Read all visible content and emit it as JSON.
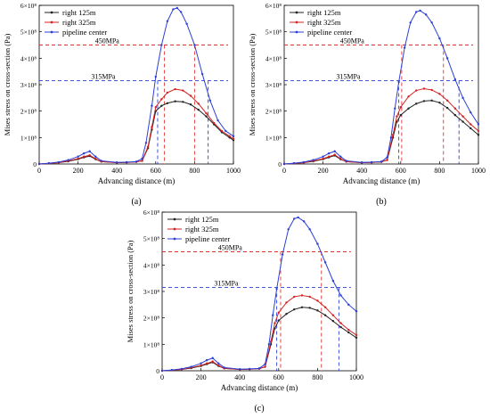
{
  "chart_data": [
    {
      "type": "line",
      "panel_label": "(a)",
      "xlabel": "Advancing distance (m)",
      "ylabel": "Mises stress on cross-section  (Pa)",
      "xlim": [
        0,
        1000
      ],
      "ylim": [
        0,
        600000000
      ],
      "xticks": [
        0,
        200,
        400,
        600,
        800,
        1000
      ],
      "yticks": [
        {
          "value": 0,
          "label": "0"
        },
        {
          "value": 100000000,
          "label": "1×10⁸"
        },
        {
          "value": 200000000,
          "label": "2×10⁸"
        },
        {
          "value": 300000000,
          "label": "3×10⁸"
        },
        {
          "value": 400000000,
          "label": "4×10⁸"
        },
        {
          "value": 500000000,
          "label": "5×10⁸"
        },
        {
          "value": 600000000,
          "label": "6×10⁸"
        }
      ],
      "legend_position": "top-left",
      "thresholds": [
        {
          "label": "450MPa",
          "value": 450000000,
          "color": "#e03131"
        },
        {
          "label": "315MPa",
          "value": 315000000,
          "color": "#2b3fd6"
        }
      ],
      "crossings": [
        {
          "x": 610,
          "color": "#2b3fd6"
        },
        {
          "x": 645,
          "color": "#e03131"
        },
        {
          "x": 800,
          "color": "#e03131"
        },
        {
          "x": 870,
          "color": "#2b3fd6"
        }
      ],
      "series": [
        {
          "name": "right 125m",
          "color": "#222222",
          "x": [
            0,
            50,
            100,
            150,
            200,
            230,
            260,
            290,
            320,
            400,
            450,
            500,
            530,
            560,
            580,
            600,
            630,
            660,
            700,
            740,
            780,
            820,
            860,
            900,
            940,
            980,
            1000
          ],
          "y": [
            0,
            2000000,
            5000000,
            10000000,
            18000000,
            25000000,
            30000000,
            18000000,
            9000000,
            5000000,
            6000000,
            8000000,
            12000000,
            60000000,
            130000000,
            200000000,
            220000000,
            230000000,
            237000000,
            235000000,
            225000000,
            205000000,
            180000000,
            150000000,
            120000000,
            100000000,
            90000000
          ]
        },
        {
          "name": "right 325m",
          "color": "#d42020",
          "x": [
            0,
            50,
            100,
            150,
            200,
            230,
            260,
            290,
            320,
            400,
            450,
            500,
            530,
            560,
            580,
            600,
            630,
            660,
            700,
            740,
            780,
            820,
            860,
            900,
            940,
            980,
            1000
          ],
          "y": [
            0,
            2000000,
            5000000,
            12000000,
            20000000,
            28000000,
            33000000,
            20000000,
            9000000,
            5000000,
            6000000,
            8000000,
            12000000,
            65000000,
            140000000,
            215000000,
            245000000,
            270000000,
            283000000,
            278000000,
            258000000,
            228000000,
            192000000,
            155000000,
            125000000,
            105000000,
            95000000
          ]
        },
        {
          "name": "pipeline center",
          "color": "#2b3fd6",
          "x": [
            0,
            50,
            100,
            150,
            200,
            230,
            260,
            290,
            320,
            400,
            450,
            500,
            530,
            550,
            580,
            600,
            630,
            660,
            690,
            710,
            730,
            760,
            800,
            840,
            880,
            920,
            960,
            1000
          ],
          "y": [
            0,
            3000000,
            7000000,
            15000000,
            28000000,
            40000000,
            48000000,
            28000000,
            12000000,
            6000000,
            7000000,
            9000000,
            20000000,
            80000000,
            220000000,
            330000000,
            450000000,
            540000000,
            585000000,
            590000000,
            575000000,
            530000000,
            450000000,
            340000000,
            240000000,
            165000000,
            125000000,
            105000000
          ]
        }
      ]
    },
    {
      "type": "line",
      "panel_label": "(b)",
      "xlabel": "Advancing distance (m)",
      "ylabel": "Mises stress on cross-section  (Pa)",
      "xlim": [
        0,
        1000
      ],
      "ylim": [
        0,
        600000000
      ],
      "xticks": [
        0,
        200,
        400,
        600,
        800,
        1000
      ],
      "yticks": [
        {
          "value": 0,
          "label": "0"
        },
        {
          "value": 100000000,
          "label": "1×10⁸"
        },
        {
          "value": 200000000,
          "label": "2×10⁸"
        },
        {
          "value": 300000000,
          "label": "3×10⁸"
        },
        {
          "value": 400000000,
          "label": "4×10⁸"
        },
        {
          "value": 500000000,
          "label": "5×10⁸"
        },
        {
          "value": 600000000,
          "label": "6×10⁸"
        }
      ],
      "legend_position": "top-left",
      "thresholds": [
        {
          "label": "450MPa",
          "value": 450000000,
          "color": "#e03131"
        },
        {
          "label": "315MPa",
          "value": 315000000,
          "color": "#2b3fd6"
        }
      ],
      "crossings": [
        {
          "x": 590,
          "color": "#2b3fd6"
        },
        {
          "x": 605,
          "color": "#e03131"
        },
        {
          "x": 820,
          "color": "#e03131"
        },
        {
          "x": 900,
          "color": "#2b3fd6"
        }
      ],
      "series": [
        {
          "name": "right 125m",
          "color": "#222222",
          "x": [
            0,
            50,
            100,
            150,
            200,
            230,
            260,
            290,
            320,
            400,
            450,
            500,
            530,
            560,
            580,
            600,
            640,
            680,
            720,
            760,
            800,
            840,
            880,
            920,
            960,
            1000
          ],
          "y": [
            0,
            2000000,
            5000000,
            10000000,
            18000000,
            25000000,
            32000000,
            18000000,
            9000000,
            5000000,
            6000000,
            8000000,
            15000000,
            100000000,
            160000000,
            185000000,
            210000000,
            228000000,
            238000000,
            240000000,
            232000000,
            212000000,
            185000000,
            160000000,
            135000000,
            110000000
          ]
        },
        {
          "name": "right 325m",
          "color": "#d42020",
          "x": [
            0,
            50,
            100,
            150,
            200,
            230,
            260,
            290,
            320,
            400,
            450,
            500,
            530,
            560,
            580,
            600,
            640,
            680,
            720,
            760,
            800,
            840,
            880,
            920,
            960,
            1000
          ],
          "y": [
            0,
            2000000,
            5000000,
            12000000,
            20000000,
            28000000,
            35000000,
            20000000,
            9000000,
            5000000,
            6000000,
            8000000,
            15000000,
            110000000,
            180000000,
            215000000,
            255000000,
            278000000,
            285000000,
            280000000,
            265000000,
            240000000,
            210000000,
            180000000,
            150000000,
            125000000
          ]
        },
        {
          "name": "pipeline center",
          "color": "#2b3fd6",
          "x": [
            0,
            50,
            100,
            150,
            200,
            230,
            260,
            290,
            320,
            400,
            450,
            500,
            530,
            550,
            570,
            590,
            620,
            650,
            680,
            700,
            730,
            760,
            800,
            840,
            880,
            920,
            960,
            1000
          ],
          "y": [
            0,
            3000000,
            7000000,
            15000000,
            28000000,
            40000000,
            48000000,
            28000000,
            12000000,
            6000000,
            7000000,
            9000000,
            25000000,
            100000000,
            210000000,
            310000000,
            440000000,
            535000000,
            575000000,
            580000000,
            565000000,
            535000000,
            475000000,
            400000000,
            320000000,
            250000000,
            195000000,
            150000000
          ]
        }
      ]
    },
    {
      "type": "line",
      "panel_label": "(c)",
      "xlabel": "Advancing distance (m)",
      "ylabel": "Mises stress on cross-section  (Pa)",
      "xlim": [
        0,
        1000
      ],
      "ylim": [
        0,
        600000000
      ],
      "xticks": [
        0,
        200,
        400,
        600,
        800,
        1000
      ],
      "yticks": [
        {
          "value": 0,
          "label": "0"
        },
        {
          "value": 100000000,
          "label": "1×10⁸"
        },
        {
          "value": 200000000,
          "label": "2×10⁸"
        },
        {
          "value": 300000000,
          "label": "3×10⁸"
        },
        {
          "value": 400000000,
          "label": "4×10⁸"
        },
        {
          "value": 500000000,
          "label": "5×10⁸"
        },
        {
          "value": 600000000,
          "label": "6×10⁸"
        }
      ],
      "legend_position": "top-left",
      "thresholds": [
        {
          "label": "450MPa",
          "value": 450000000,
          "color": "#e03131"
        },
        {
          "label": "315MPa",
          "value": 315000000,
          "color": "#2b3fd6"
        }
      ],
      "crossings": [
        {
          "x": 590,
          "color": "#2b3fd6"
        },
        {
          "x": 610,
          "color": "#e03131"
        },
        {
          "x": 820,
          "color": "#e03131"
        },
        {
          "x": 910,
          "color": "#2b3fd6"
        }
      ],
      "series": [
        {
          "name": "right 125m",
          "color": "#222222",
          "x": [
            0,
            50,
            100,
            150,
            200,
            230,
            260,
            290,
            320,
            400,
            450,
            500,
            530,
            560,
            580,
            600,
            640,
            680,
            720,
            760,
            800,
            840,
            880,
            920,
            960,
            1000
          ],
          "y": [
            0,
            2000000,
            5000000,
            10000000,
            18000000,
            25000000,
            32000000,
            18000000,
            9000000,
            5000000,
            6000000,
            8000000,
            15000000,
            100000000,
            160000000,
            190000000,
            215000000,
            232000000,
            240000000,
            238000000,
            228000000,
            210000000,
            188000000,
            165000000,
            145000000,
            125000000
          ]
        },
        {
          "name": "right 325m",
          "color": "#d42020",
          "x": [
            0,
            50,
            100,
            150,
            200,
            230,
            260,
            290,
            320,
            400,
            450,
            500,
            530,
            560,
            580,
            600,
            640,
            680,
            720,
            760,
            800,
            840,
            880,
            920,
            960,
            1000
          ],
          "y": [
            0,
            2000000,
            5000000,
            12000000,
            20000000,
            28000000,
            35000000,
            20000000,
            9000000,
            5000000,
            6000000,
            8000000,
            15000000,
            110000000,
            180000000,
            220000000,
            258000000,
            280000000,
            285000000,
            280000000,
            265000000,
            240000000,
            210000000,
            180000000,
            155000000,
            135000000
          ]
        },
        {
          "name": "pipeline center",
          "color": "#2b3fd6",
          "x": [
            0,
            50,
            100,
            150,
            200,
            230,
            260,
            290,
            320,
            400,
            450,
            500,
            530,
            550,
            570,
            590,
            620,
            650,
            680,
            700,
            730,
            760,
            800,
            840,
            880,
            920,
            960,
            1000
          ],
          "y": [
            0,
            3000000,
            7000000,
            15000000,
            28000000,
            40000000,
            48000000,
            28000000,
            12000000,
            6000000,
            7000000,
            9000000,
            25000000,
            100000000,
            210000000,
            310000000,
            440000000,
            535000000,
            575000000,
            580000000,
            565000000,
            535000000,
            480000000,
            410000000,
            340000000,
            285000000,
            250000000,
            225000000
          ]
        }
      ]
    }
  ]
}
